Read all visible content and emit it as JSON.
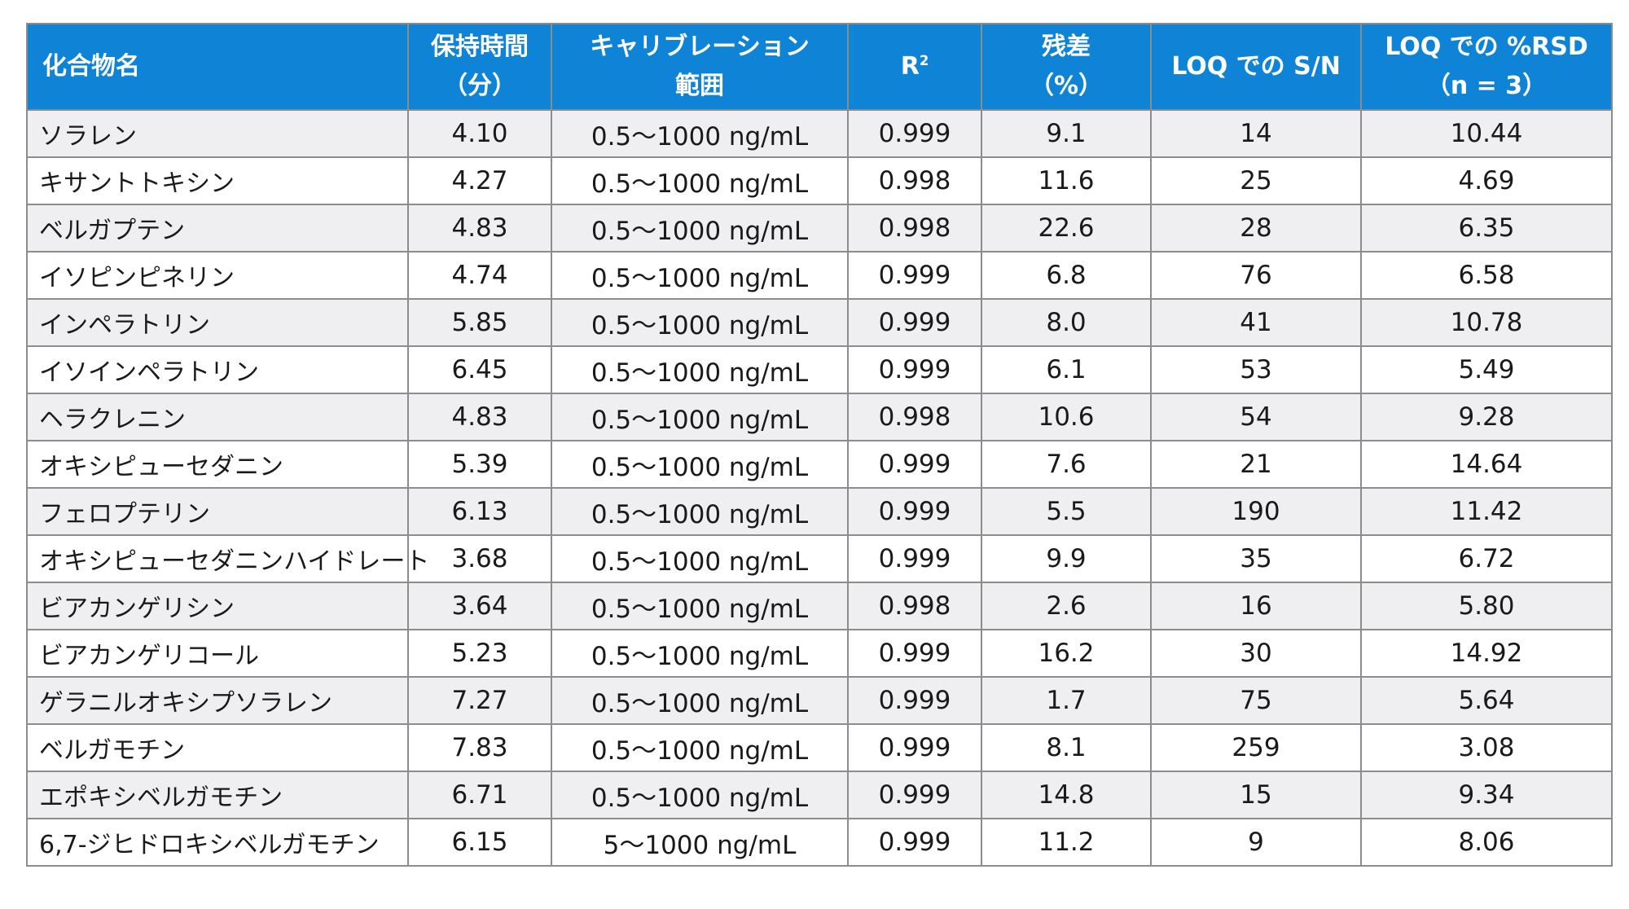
{
  "colors": {
    "header_bg": "#0f84d6",
    "header_text": "#ffffff",
    "row_alt_bg": "#efeff1",
    "border": "#8c8c8c"
  },
  "headers": {
    "compound": "化合物名",
    "rt_line1": "保持時間",
    "rt_line2": "（分）",
    "cal_line1": "キャリブレーション",
    "cal_line2": "範囲",
    "r2_base": "R",
    "r2_sup": "2",
    "residual_line1": "残差",
    "residual_line2": "（%）",
    "sn": "LOQ での S/N",
    "rsd_line1": "LOQ での %RSD",
    "rsd_line2": "（n = 3）"
  },
  "rows": [
    {
      "name": "ソラレン",
      "rt": "4.10",
      "range": "0.5～1000 ng/mL",
      "r2": "0.999",
      "residual": "9.1",
      "sn": "14",
      "rsd": "10.44"
    },
    {
      "name": "キサントトキシン",
      "rt": "4.27",
      "range": "0.5～1000 ng/mL",
      "r2": "0.998",
      "residual": "11.6",
      "sn": "25",
      "rsd": "4.69"
    },
    {
      "name": "ベルガプテン",
      "rt": "4.83",
      "range": "0.5～1000 ng/mL",
      "r2": "0.998",
      "residual": "22.6",
      "sn": "28",
      "rsd": "6.35"
    },
    {
      "name": "イソピンピネリン",
      "rt": "4.74",
      "range": "0.5～1000 ng/mL",
      "r2": "0.999",
      "residual": "6.8",
      "sn": "76",
      "rsd": "6.58"
    },
    {
      "name": "インペラトリン",
      "rt": "5.85",
      "range": "0.5～1000 ng/mL",
      "r2": "0.999",
      "residual": "8.0",
      "sn": "41",
      "rsd": "10.78"
    },
    {
      "name": "イソインペラトリン",
      "rt": "6.45",
      "range": "0.5～1000 ng/mL",
      "r2": "0.999",
      "residual": "6.1",
      "sn": "53",
      "rsd": "5.49"
    },
    {
      "name": "ヘラクレニン",
      "rt": "4.83",
      "range": "0.5～1000 ng/mL",
      "r2": "0.998",
      "residual": "10.6",
      "sn": "54",
      "rsd": "9.28"
    },
    {
      "name": "オキシピューセダニン",
      "rt": "5.39",
      "range": "0.5～1000 ng/mL",
      "r2": "0.999",
      "residual": "7.6",
      "sn": "21",
      "rsd": "14.64"
    },
    {
      "name": "フェロプテリン",
      "rt": "6.13",
      "range": "0.5～1000 ng/mL",
      "r2": "0.999",
      "residual": "5.5",
      "sn": "190",
      "rsd": "11.42"
    },
    {
      "name": "オキシピューセダニンハイドレート",
      "rt": "3.68",
      "range": "0.5～1000 ng/mL",
      "r2": "0.999",
      "residual": "9.9",
      "sn": "35",
      "rsd": "6.72"
    },
    {
      "name": "ビアカンゲリシン",
      "rt": "3.64",
      "range": "0.5～1000 ng/mL",
      "r2": "0.998",
      "residual": "2.6",
      "sn": "16",
      "rsd": "5.80"
    },
    {
      "name": "ビアカンゲリコール",
      "rt": "5.23",
      "range": "0.5～1000 ng/mL",
      "r2": "0.999",
      "residual": "16.2",
      "sn": "30",
      "rsd": "14.92"
    },
    {
      "name": "ゲラニルオキシプソラレン",
      "rt": "7.27",
      "range": "0.5～1000 ng/mL",
      "r2": "0.999",
      "residual": "1.7",
      "sn": "75",
      "rsd": "5.64"
    },
    {
      "name": "ベルガモチン",
      "rt": "7.83",
      "range": "0.5～1000 ng/mL",
      "r2": "0.999",
      "residual": "8.1",
      "sn": "259",
      "rsd": "3.08"
    },
    {
      "name": "エポキシベルガモチン",
      "rt": "6.71",
      "range": "0.5～1000 ng/mL",
      "r2": "0.999",
      "residual": "14.8",
      "sn": "15",
      "rsd": "9.34"
    },
    {
      "name": "6,7-ジヒドロキシベルガモチン",
      "rt": "6.15",
      "range": "5～1000 ng/mL",
      "r2": "0.999",
      "residual": "11.2",
      "sn": "9",
      "rsd": "8.06"
    }
  ]
}
